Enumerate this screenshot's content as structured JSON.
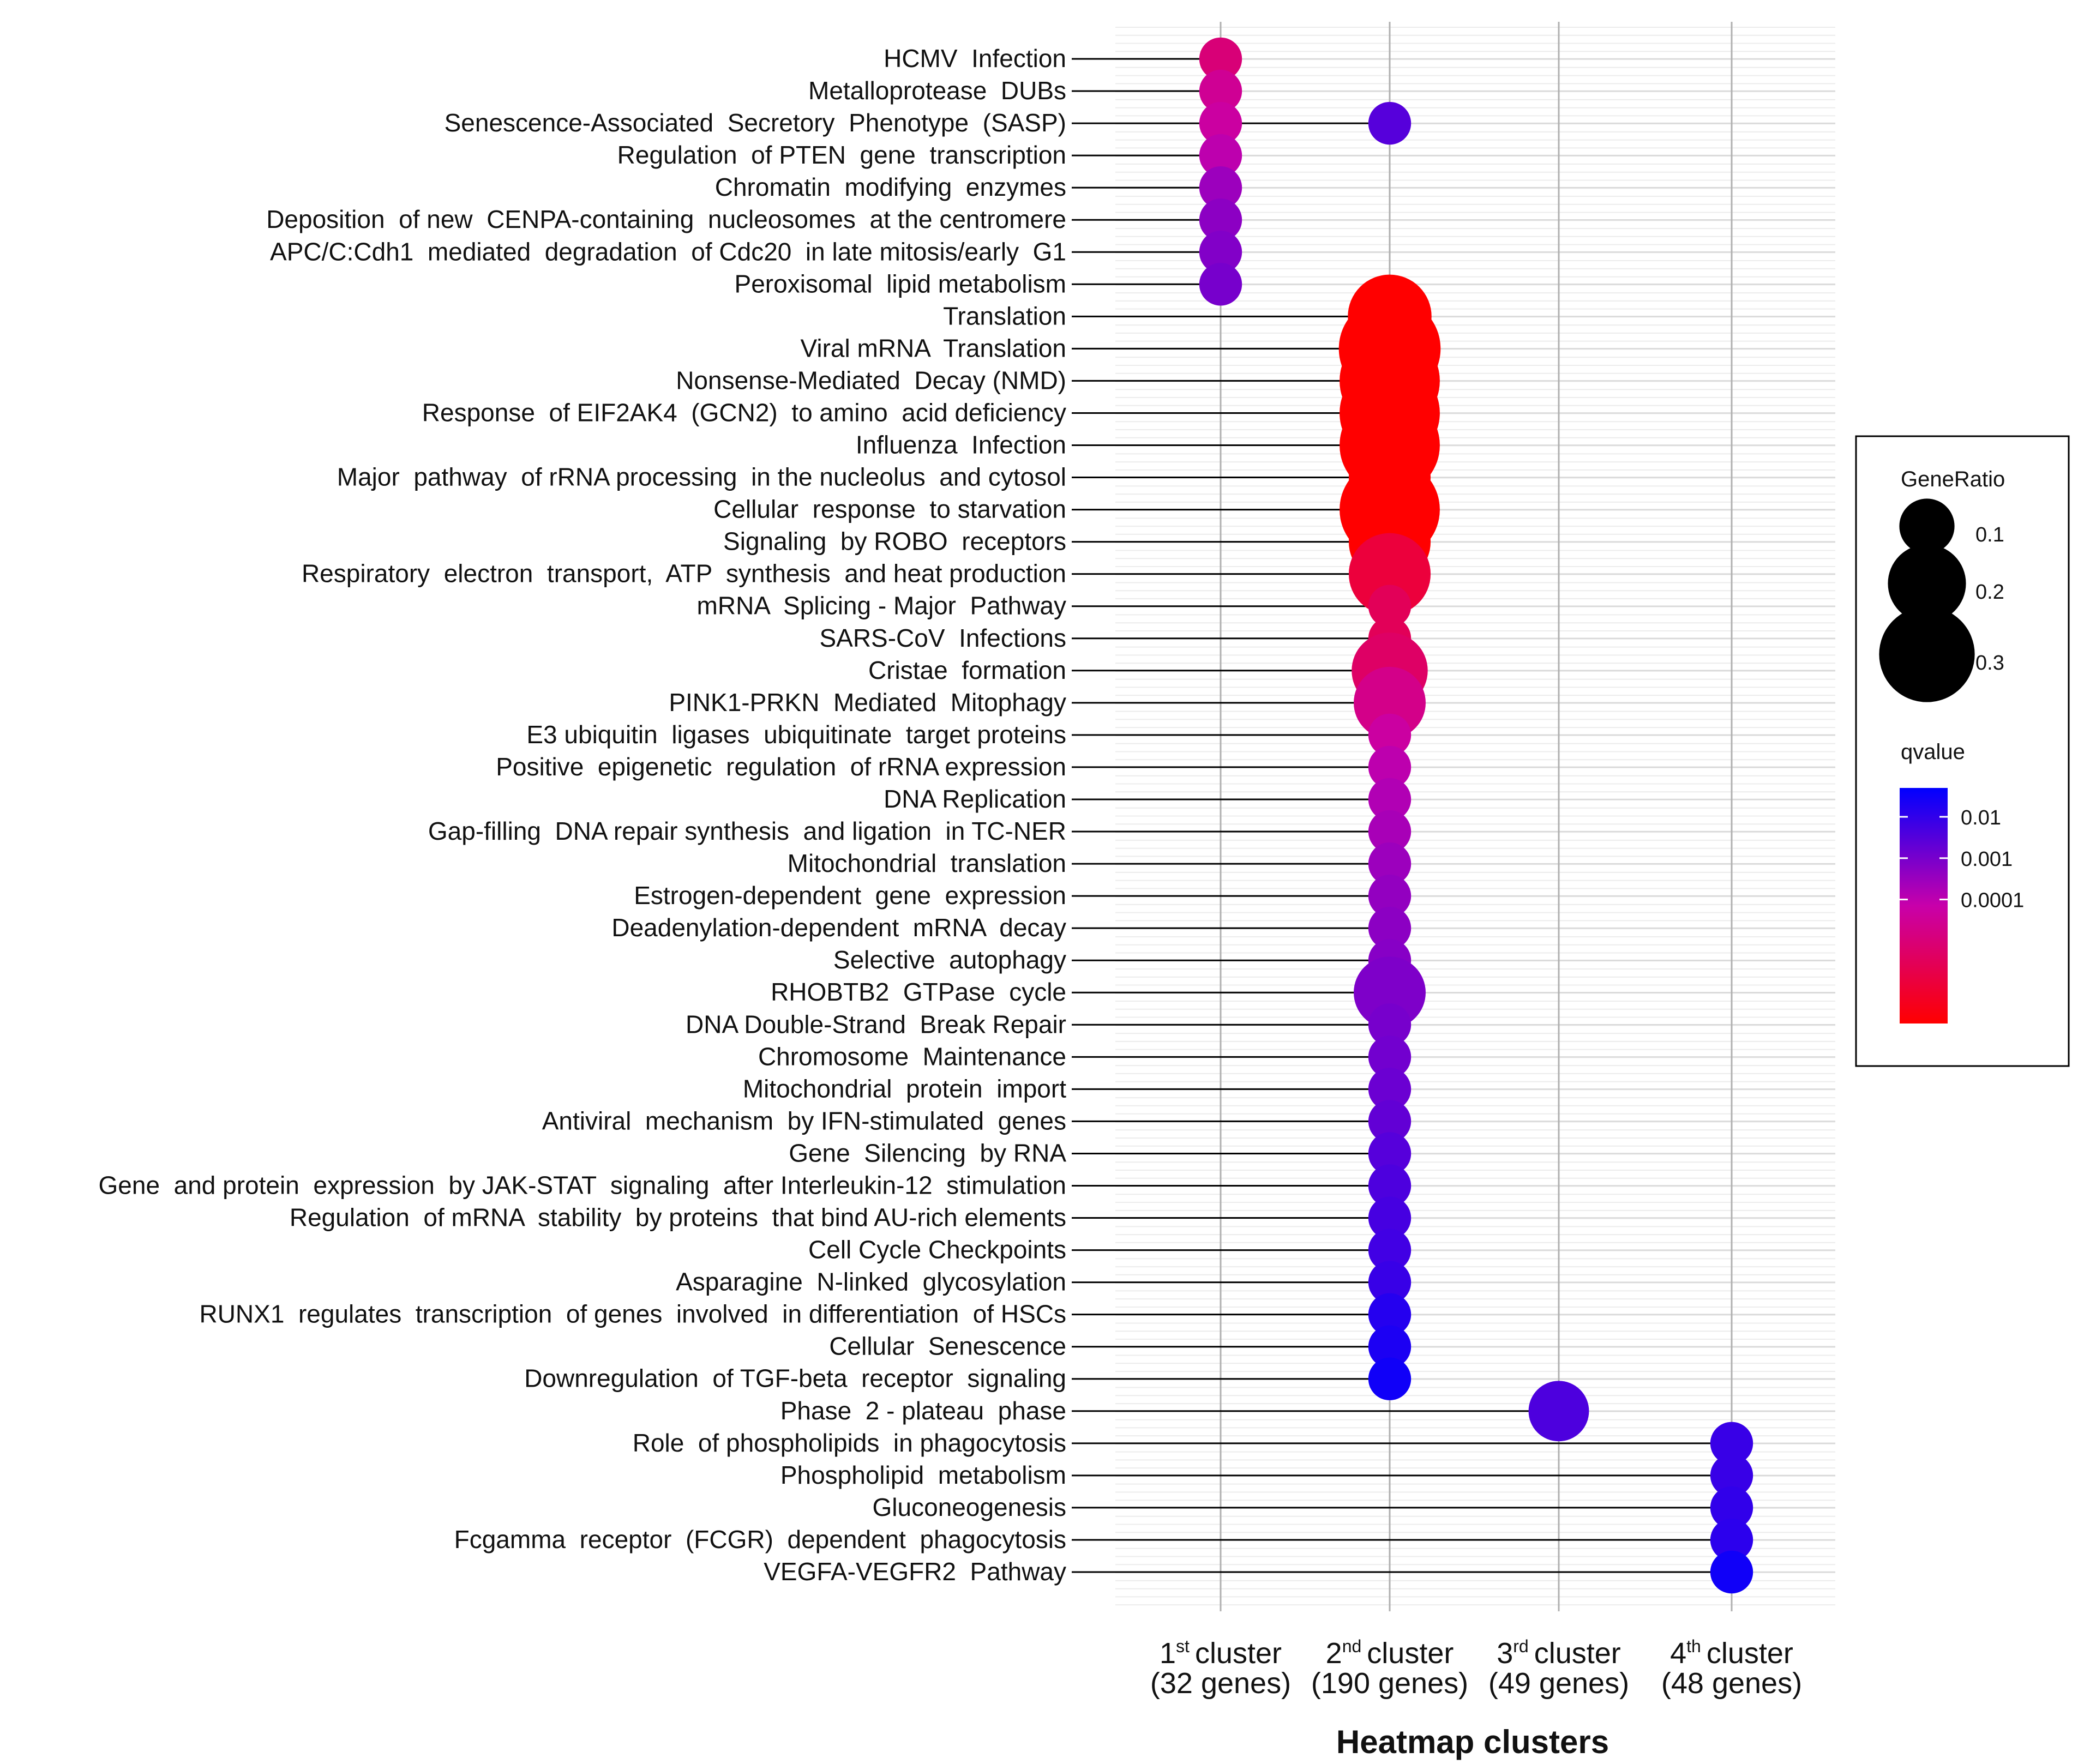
{
  "chart_data": {
    "type": "scatter",
    "title": "",
    "xlabel": "Heatmap clusters",
    "ylabel": "",
    "clusters": [
      {
        "ordinal": "1",
        "suffix": "st",
        "word": "cluster",
        "genes": "(32 genes)"
      },
      {
        "ordinal": "2",
        "suffix": "nd",
        "word": "cluster",
        "genes": "(190 genes)"
      },
      {
        "ordinal": "3",
        "suffix": "rd",
        "word": "cluster",
        "genes": "(49 genes)"
      },
      {
        "ordinal": "4",
        "suffix": "th",
        "word": "cluster",
        "genes": "(48 genes)"
      }
    ],
    "points": [
      {
        "term": "HCMV  Infection",
        "cluster": 1,
        "gene_ratio": 0.06,
        "qvalue": 1e-05
      },
      {
        "term": "Metalloprotease  DUBs",
        "cluster": 1,
        "gene_ratio": 0.06,
        "qvalue": 3e-05
      },
      {
        "term": "Senescence-Associated  Secretory  Phenotype  (SASP)",
        "cluster": 1,
        "gene_ratio": 0.06,
        "qvalue": 5e-05
      },
      {
        "term": "Senescence-Associated  Secretory  Phenotype  (SASP)",
        "cluster": 2,
        "gene_ratio": 0.06,
        "qvalue": 0.003
      },
      {
        "term": "Regulation  of PTEN  gene  transcription",
        "cluster": 1,
        "gene_ratio": 0.06,
        "qvalue": 0.0001
      },
      {
        "term": "Chromatin  modifying  enzymes",
        "cluster": 1,
        "gene_ratio": 0.06,
        "qvalue": 0.0003
      },
      {
        "term": "Deposition  of new  CENPA-containing  nucleosomes  at the centromere",
        "cluster": 1,
        "gene_ratio": 0.06,
        "qvalue": 0.0005
      },
      {
        "term": "APC/C:Cdh1  mediated  degradation  of Cdc20  in late mitosis/early  G1",
        "cluster": 1,
        "gene_ratio": 0.06,
        "qvalue": 0.0007
      },
      {
        "term": "Peroxisomal  lipid metabolism",
        "cluster": 1,
        "gene_ratio": 0.06,
        "qvalue": 0.001
      },
      {
        "term": "Translation",
        "cluster": 2,
        "gene_ratio": 0.23,
        "qvalue": 1e-07
      },
      {
        "term": "Viral mRNA  Translation",
        "cluster": 2,
        "gene_ratio": 0.34,
        "qvalue": 1e-07
      },
      {
        "term": "Nonsense-Mediated  Decay (NMD)",
        "cluster": 2,
        "gene_ratio": 0.33,
        "qvalue": 1e-07
      },
      {
        "term": "Response  of EIF2AK4  (GCN2)  to amino  acid deficiency",
        "cluster": 2,
        "gene_ratio": 0.33,
        "qvalue": 1e-07
      },
      {
        "term": "Influenza  Infection",
        "cluster": 2,
        "gene_ratio": 0.33,
        "qvalue": 1e-07
      },
      {
        "term": "Major  pathway  of rRNA processing  in the nucleolus  and cytosol",
        "cluster": 2,
        "gene_ratio": 0.22,
        "qvalue": 1e-07
      },
      {
        "term": "Cellular  response  to starvation",
        "cluster": 2,
        "gene_ratio": 0.33,
        "qvalue": 1e-07
      },
      {
        "term": "Signaling  by ROBO  receptors",
        "cluster": 2,
        "gene_ratio": 0.22,
        "qvalue": 1e-07
      },
      {
        "term": "Respiratory  electron  transport,  ATP  synthesis  and heat production",
        "cluster": 2,
        "gene_ratio": 0.22,
        "qvalue": 1e-06
      },
      {
        "term": "mRNA  Splicing - Major  Pathway",
        "cluster": 2,
        "gene_ratio": 0.06,
        "qvalue": 3e-06
      },
      {
        "term": "SARS-CoV  Infections",
        "cluster": 2,
        "gene_ratio": 0.06,
        "qvalue": 3e-06
      },
      {
        "term": "Cristae  formation",
        "cluster": 2,
        "gene_ratio": 0.19,
        "qvalue": 5e-06
      },
      {
        "term": "PINK1-PRKN  Mediated  Mitophagy",
        "cluster": 2,
        "gene_ratio": 0.17,
        "qvalue": 2e-05
      },
      {
        "term": "E3 ubiquitin  ligases  ubiquitinate  target proteins",
        "cluster": 2,
        "gene_ratio": 0.06,
        "qvalue": 5e-05
      },
      {
        "term": "Positive  epigenetic  regulation  of rRNA expression",
        "cluster": 2,
        "gene_ratio": 0.06,
        "qvalue": 0.0001
      },
      {
        "term": "DNA Replication",
        "cluster": 2,
        "gene_ratio": 0.06,
        "qvalue": 0.00015
      },
      {
        "term": "Gap-filling  DNA repair synthesis  and ligation  in TC-NER",
        "cluster": 2,
        "gene_ratio": 0.06,
        "qvalue": 0.0002
      },
      {
        "term": "Mitochondrial  translation",
        "cluster": 2,
        "gene_ratio": 0.06,
        "qvalue": 0.0003
      },
      {
        "term": "Estrogen-dependent  gene  expression",
        "cluster": 2,
        "gene_ratio": 0.06,
        "qvalue": 0.0004
      },
      {
        "term": "Deadenylation-dependent  mRNA  decay",
        "cluster": 2,
        "gene_ratio": 0.06,
        "qvalue": 0.0005
      },
      {
        "term": "Selective  autophagy",
        "cluster": 2,
        "gene_ratio": 0.06,
        "qvalue": 0.0006
      },
      {
        "term": "RHOBTB2  GTPase  cycle",
        "cluster": 2,
        "gene_ratio": 0.17,
        "qvalue": 0.0008
      },
      {
        "term": "DNA Double-Strand  Break Repair",
        "cluster": 2,
        "gene_ratio": 0.06,
        "qvalue": 0.001
      },
      {
        "term": "Chromosome  Maintenance",
        "cluster": 2,
        "gene_ratio": 0.06,
        "qvalue": 0.0012
      },
      {
        "term": "Mitochondrial  protein  import",
        "cluster": 2,
        "gene_ratio": 0.06,
        "qvalue": 0.0015
      },
      {
        "term": "Antiviral  mechanism  by IFN-stimulated  genes",
        "cluster": 2,
        "gene_ratio": 0.06,
        "qvalue": 0.002
      },
      {
        "term": "Gene  Silencing  by RNA",
        "cluster": 2,
        "gene_ratio": 0.06,
        "qvalue": 0.003
      },
      {
        "term": "Gene  and protein  expression  by JAK-STAT  signaling  after Interleukin-12  stimulation",
        "cluster": 2,
        "gene_ratio": 0.06,
        "qvalue": 0.004
      },
      {
        "term": "Regulation  of mRNA  stability  by proteins  that bind AU-rich elements",
        "cluster": 2,
        "gene_ratio": 0.06,
        "qvalue": 0.005
      },
      {
        "term": "Cell Cycle Checkpoints",
        "cluster": 2,
        "gene_ratio": 0.06,
        "qvalue": 0.006
      },
      {
        "term": "Asparagine  N-linked  glycosylation",
        "cluster": 2,
        "gene_ratio": 0.06,
        "qvalue": 0.008
      },
      {
        "term": "RUNX1  regulates  transcription  of genes  involved  in differentiation  of HSCs",
        "cluster": 2,
        "gene_ratio": 0.06,
        "qvalue": 0.015
      },
      {
        "term": "Cellular  Senescence",
        "cluster": 2,
        "gene_ratio": 0.06,
        "qvalue": 0.02
      },
      {
        "term": "Downregulation  of TGF-beta  receptor  signaling",
        "cluster": 2,
        "gene_ratio": 0.06,
        "qvalue": 0.03
      },
      {
        "term": "Phase  2 - plateau  phase",
        "cluster": 3,
        "gene_ratio": 0.12,
        "qvalue": 0.004
      },
      {
        "term": "Role  of phospholipids  in phagocytosis",
        "cluster": 4,
        "gene_ratio": 0.06,
        "qvalue": 0.008
      },
      {
        "term": "Phospholipid  metabolism",
        "cluster": 4,
        "gene_ratio": 0.06,
        "qvalue": 0.008
      },
      {
        "term": "Gluconeogenesis",
        "cluster": 4,
        "gene_ratio": 0.06,
        "qvalue": 0.01
      },
      {
        "term": "Fcgamma  receptor  (FCGR)  dependent  phagocytosis",
        "cluster": 4,
        "gene_ratio": 0.06,
        "qvalue": 0.012
      },
      {
        "term": "VEGFA-VEGFR2  Pathway",
        "cluster": 4,
        "gene_ratio": 0.06,
        "qvalue": 0.03
      }
    ],
    "legend": {
      "size_title": "GeneRatio",
      "size_breaks": [
        {
          "label": "0.1",
          "value": 0.1
        },
        {
          "label": "0.2",
          "value": 0.2
        },
        {
          "label": "0.3",
          "value": 0.3
        }
      ],
      "color_title": "qvalue",
      "color_breaks": [
        {
          "label": "0.01",
          "value": 0.01
        },
        {
          "label": "0.001",
          "value": 0.001
        },
        {
          "label": "0.0001",
          "value": 0.0001
        }
      ],
      "qvalue_range": [
        1e-07,
        0.05
      ],
      "color_low": "#ff0000",
      "color_high": "#0000ff",
      "position": "right"
    },
    "colors": {
      "grid": "#d9d9d9",
      "cluster_line": "#b0b0b0",
      "stem": "#000000",
      "text": "#111111"
    }
  }
}
